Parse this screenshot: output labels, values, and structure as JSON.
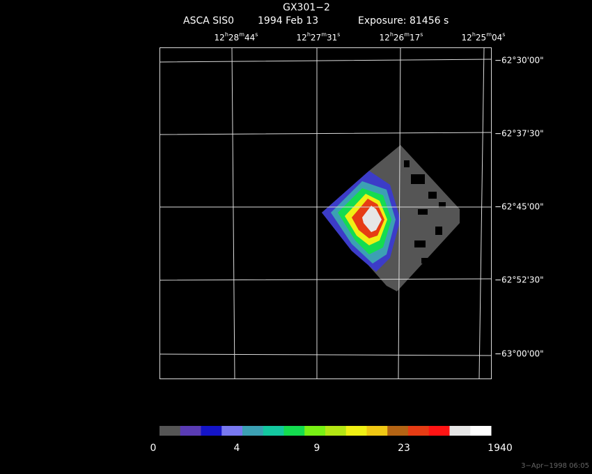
{
  "header": {
    "title": "GX301−2",
    "instrument": "ASCA SIS0",
    "date": "1994 Feb 13",
    "exposure": "Exposure: 81456 s"
  },
  "ra_labels": [
    [
      "12",
      "h",
      "28",
      "m",
      "44",
      "s"
    ],
    [
      "12",
      "h",
      "27",
      "m",
      "31",
      "s"
    ],
    [
      "12",
      "h",
      "26",
      "m",
      "17",
      "s"
    ],
    [
      "12",
      "h",
      "25",
      "m",
      "04",
      "s"
    ]
  ],
  "dec_labels": [
    "−62°30'00\"",
    "−62°37'30\"",
    "−62°45'00\"",
    "−62°52'30\"",
    "−63°00'00\""
  ],
  "colorbar": {
    "colors": [
      "#555555",
      "#5a3cb4",
      "#1414c8",
      "#7878f0",
      "#3ca0b4",
      "#14c8a0",
      "#14dc50",
      "#78f014",
      "#b4e614",
      "#f0f014",
      "#f0c814",
      "#b46414",
      "#e63c14",
      "#ff1414",
      "#e6e6e6",
      "#ffffff"
    ],
    "labels": [
      "0",
      "4",
      "9",
      "23",
      "1940"
    ]
  },
  "footer": {
    "timestamp": "3−Apr−1998 06:05"
  }
}
